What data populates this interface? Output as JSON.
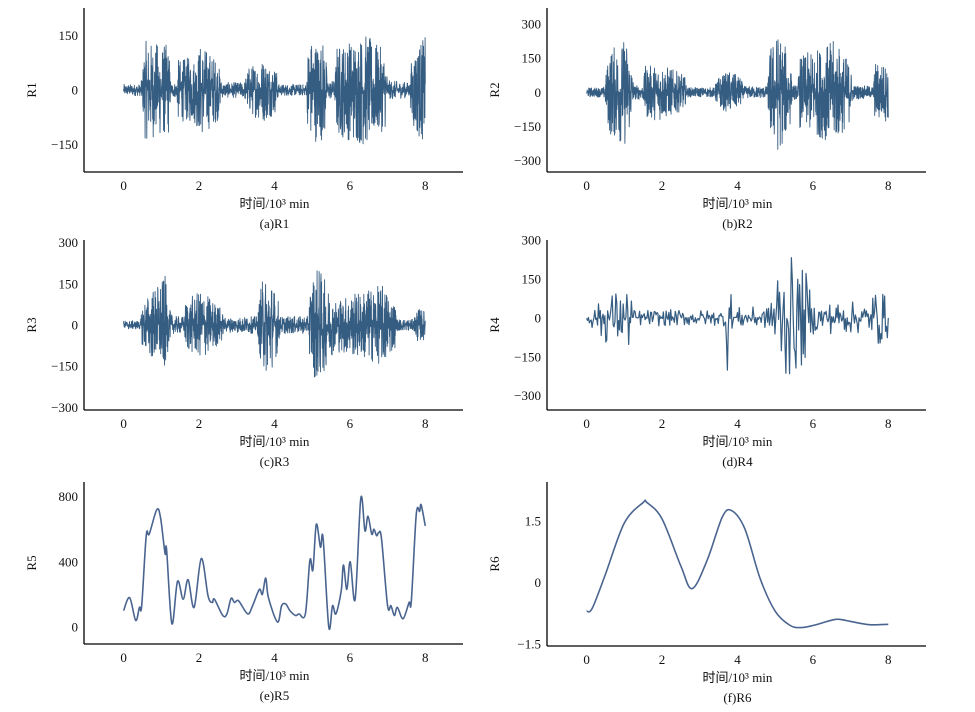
{
  "chart_data": [
    {
      "id": "R1",
      "type": "line",
      "caption": "(a)R1",
      "xlabel": "时间/10³ min",
      "ylabel": "R1",
      "xlim": [
        -1.05,
        9.0
      ],
      "ylim": [
        -226,
        226
      ],
      "xticks": [
        0,
        2,
        4,
        6,
        8
      ],
      "yticks": [
        -150,
        0,
        150
      ],
      "yticklabels": [
        "−150",
        "0",
        "150"
      ],
      "color": "#1f4a73",
      "style": "noise",
      "freq": 1600,
      "envelope": [
        [
          0,
          15
        ],
        [
          0.45,
          15
        ],
        [
          0.5,
          40
        ],
        [
          0.55,
          130
        ],
        [
          1.2,
          120
        ],
        [
          1.25,
          20
        ],
        [
          1.4,
          20
        ],
        [
          1.45,
          80
        ],
        [
          1.9,
          90
        ],
        [
          2.05,
          125
        ],
        [
          2.5,
          80
        ],
        [
          2.6,
          20
        ],
        [
          3.2,
          20
        ],
        [
          3.3,
          60
        ],
        [
          3.7,
          85
        ],
        [
          4.05,
          60
        ],
        [
          4.1,
          15
        ],
        [
          4.85,
          15
        ],
        [
          4.9,
          140
        ],
        [
          5.35,
          130
        ],
        [
          5.4,
          25
        ],
        [
          5.6,
          25
        ],
        [
          5.65,
          120
        ],
        [
          6.4,
          150
        ],
        [
          6.95,
          100
        ],
        [
          7.0,
          25
        ],
        [
          7.6,
          20
        ],
        [
          7.65,
          110
        ],
        [
          8.0,
          140
        ]
      ]
    },
    {
      "id": "R2",
      "type": "line",
      "caption": "(b)R2",
      "xlabel": "时间/10³ min",
      "ylabel": "R2",
      "xlim": [
        -1.05,
        9.0
      ],
      "ylim": [
        -350,
        370
      ],
      "xticks": [
        0,
        2,
        4,
        6,
        8
      ],
      "yticks": [
        -300,
        -150,
        0,
        150,
        300
      ],
      "yticklabels": [
        "−300",
        "−150",
        "0",
        "150",
        "300"
      ],
      "color": "#1f4a73",
      "style": "noise",
      "freq": 1600,
      "envelope": [
        [
          0,
          20
        ],
        [
          0.45,
          20
        ],
        [
          0.5,
          60
        ],
        [
          0.6,
          180
        ],
        [
          1.05,
          230
        ],
        [
          1.2,
          120
        ],
        [
          1.25,
          30
        ],
        [
          1.5,
          30
        ],
        [
          1.55,
          110
        ],
        [
          2.0,
          120
        ],
        [
          2.6,
          70
        ],
        [
          2.65,
          20
        ],
        [
          3.4,
          20
        ],
        [
          3.45,
          60
        ],
        [
          3.8,
          90
        ],
        [
          4.1,
          60
        ],
        [
          4.15,
          25
        ],
        [
          4.8,
          25
        ],
        [
          4.85,
          190
        ],
        [
          5.1,
          260
        ],
        [
          5.4,
          140
        ],
        [
          5.45,
          30
        ],
        [
          5.6,
          30
        ],
        [
          5.65,
          150
        ],
        [
          6.6,
          220
        ],
        [
          7.0,
          120
        ],
        [
          7.05,
          30
        ],
        [
          7.6,
          25
        ],
        [
          7.65,
          130
        ],
        [
          8.0,
          120
        ]
      ]
    },
    {
      "id": "R3",
      "type": "line",
      "caption": "(c)R3",
      "xlabel": "时间/10³ min",
      "ylabel": "R3",
      "xlim": [
        -1.05,
        9.0
      ],
      "ylim": [
        -310,
        310
      ],
      "xticks": [
        0,
        2,
        4,
        6,
        8
      ],
      "yticks": [
        -300,
        -150,
        0,
        150,
        300
      ],
      "yticklabels": [
        "−300",
        "−150",
        "0",
        "150",
        "300"
      ],
      "color": "#1f4a73",
      "style": "noise",
      "freq": 1600,
      "envelope": [
        [
          0,
          15
        ],
        [
          0.45,
          15
        ],
        [
          0.5,
          80
        ],
        [
          0.8,
          130
        ],
        [
          1.1,
          170
        ],
        [
          1.2,
          60
        ],
        [
          1.3,
          30
        ],
        [
          1.6,
          30
        ],
        [
          1.65,
          90
        ],
        [
          2.1,
          120
        ],
        [
          2.6,
          60
        ],
        [
          2.65,
          25
        ],
        [
          3.55,
          30
        ],
        [
          3.65,
          150
        ],
        [
          3.85,
          180
        ],
        [
          4.1,
          90
        ],
        [
          4.15,
          30
        ],
        [
          4.9,
          30
        ],
        [
          4.95,
          150
        ],
        [
          5.15,
          210
        ],
        [
          5.5,
          110
        ],
        [
          5.6,
          90
        ],
        [
          6.3,
          120
        ],
        [
          6.9,
          140
        ],
        [
          7.2,
          80
        ],
        [
          7.25,
          20
        ],
        [
          7.7,
          20
        ],
        [
          7.75,
          60
        ],
        [
          8.0,
          50
        ]
      ]
    },
    {
      "id": "R4",
      "type": "line",
      "caption": "(d)R4",
      "xlabel": "时间/10³ min",
      "ylabel": "R4",
      "xlim": [
        -1.05,
        9.0
      ],
      "ylim": [
        -355,
        300
      ],
      "xticks": [
        0,
        2,
        4,
        6,
        8
      ],
      "yticks": [
        -300,
        -150,
        0,
        150,
        300
      ],
      "yticklabels": [
        "−300",
        "−150",
        "0",
        "150",
        "300"
      ],
      "color": "#1f4a73",
      "style": "noise",
      "freq": 330,
      "envelope": [
        [
          0,
          40
        ],
        [
          0.3,
          40
        ],
        [
          0.35,
          90
        ],
        [
          1.1,
          110
        ],
        [
          1.2,
          180
        ],
        [
          1.25,
          30
        ],
        [
          3.65,
          30
        ],
        [
          3.7,
          230
        ],
        [
          3.8,
          200
        ],
        [
          3.85,
          40
        ],
        [
          4.85,
          40
        ],
        [
          4.9,
          210
        ],
        [
          5.3,
          240
        ],
        [
          5.9,
          160
        ],
        [
          5.95,
          60
        ],
        [
          7.55,
          60
        ],
        [
          7.6,
          120
        ],
        [
          8.0,
          80
        ]
      ]
    },
    {
      "id": "R5",
      "type": "line",
      "caption": "(e)R5",
      "xlabel": "时间/10³ min",
      "ylabel": "R5",
      "xlim": [
        -1.05,
        9.0
      ],
      "ylim": [
        -105,
        890
      ],
      "xticks": [
        0,
        2,
        4,
        6,
        8
      ],
      "yticks": [
        0,
        400,
        800
      ],
      "yticklabels": [
        "0",
        "400",
        "800"
      ],
      "color": "#4a6490",
      "style": "smooth",
      "x": [
        0,
        0.16,
        0.32,
        0.42,
        0.48,
        0.6,
        0.68,
        0.88,
        0.98,
        1.1,
        1.14,
        1.28,
        1.43,
        1.58,
        1.71,
        1.87,
        2.06,
        2.24,
        2.35,
        2.41,
        2.63,
        2.74,
        2.85,
        2.94,
        3.05,
        3.29,
        3.42,
        3.6,
        3.68,
        3.77,
        3.84,
        4.08,
        4.19,
        4.3,
        4.41,
        4.56,
        4.65,
        4.82,
        4.94,
        5.02,
        5.11,
        5.22,
        5.29,
        5.44,
        5.54,
        5.63,
        5.77,
        5.83,
        5.92,
        6.01,
        6.14,
        6.29,
        6.4,
        6.48,
        6.58,
        6.64,
        6.71,
        6.77,
        6.84,
        7.0,
        7.09,
        7.18,
        7.26,
        7.41,
        7.57,
        7.63,
        7.76,
        7.85,
        7.89,
        8.0
      ],
      "y": [
        100,
        180,
        40,
        120,
        130,
        560,
        570,
        720,
        670,
        450,
        475,
        20,
        280,
        170,
        290,
        120,
        420,
        190,
        150,
        170,
        70,
        80,
        175,
        150,
        160,
        80,
        130,
        230,
        200,
        300,
        180,
        30,
        130,
        140,
        100,
        70,
        80,
        80,
        410,
        350,
        630,
        490,
        545,
        0,
        130,
        80,
        220,
        380,
        230,
        400,
        170,
        790,
        590,
        680,
        570,
        600,
        560,
        580,
        540,
        130,
        130,
        70,
        120,
        50,
        150,
        160,
        690,
        710,
        750,
        620
      ]
    },
    {
      "id": "R6",
      "type": "line",
      "caption": "(f)R6",
      "xlabel": "时间/10³ min",
      "ylabel": "R6",
      "xlim": [
        -1.05,
        9.0
      ],
      "ylim": [
        -1.55,
        2.45
      ],
      "xticks": [
        0,
        2,
        4,
        6,
        8
      ],
      "yticks": [
        -1.5,
        0,
        1.5
      ],
      "yticklabels": [
        "−1.5",
        "0",
        "1.5"
      ],
      "color": "#4a6490",
      "style": "smooth",
      "x": [
        0,
        0.15,
        0.5,
        1.0,
        1.5,
        1.6,
        2.0,
        2.5,
        2.8,
        3.2,
        3.6,
        3.85,
        4.2,
        4.6,
        5.0,
        5.4,
        5.7,
        6.0,
        6.5,
        6.7,
        7.0,
        7.5,
        8.0
      ],
      "y": [
        -0.7,
        -0.63,
        0.2,
        1.45,
        1.95,
        1.95,
        1.55,
        0.4,
        -0.15,
        0.55,
        1.6,
        1.75,
        1.3,
        0.1,
        -0.7,
        -1.05,
        -1.1,
        -1.05,
        -0.92,
        -0.9,
        -0.95,
        -1.03,
        -1.02
      ]
    }
  ]
}
